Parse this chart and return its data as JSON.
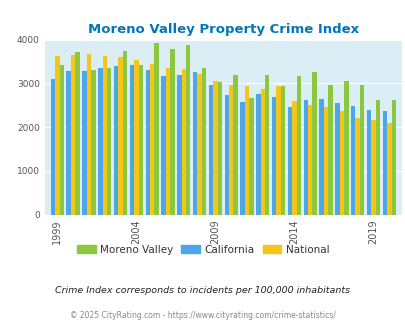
{
  "title": "Moreno Valley Property Crime Index",
  "years": [
    1999,
    2000,
    2001,
    2002,
    2003,
    2004,
    2005,
    2006,
    2007,
    2008,
    2009,
    2010,
    2011,
    2012,
    2013,
    2014,
    2015,
    2016,
    2017,
    2018,
    2019,
    2020
  ],
  "moreno_valley": [
    3430,
    3720,
    3310,
    3360,
    3730,
    3430,
    3920,
    3780,
    3870,
    3350,
    3030,
    3200,
    2660,
    3190,
    2950,
    3160,
    3250,
    2970,
    3060,
    2960,
    2630,
    2620
  ],
  "california": [
    3100,
    3280,
    3290,
    3340,
    3400,
    3420,
    3310,
    3160,
    3180,
    3270,
    2960,
    2730,
    2580,
    2760,
    2680,
    2450,
    2610,
    2640,
    2550,
    2490,
    2380,
    2360
  ],
  "national": [
    3620,
    3640,
    3670,
    3620,
    3600,
    3530,
    3450,
    3350,
    3330,
    3220,
    3050,
    2960,
    2940,
    2870,
    2950,
    2600,
    2510,
    2450,
    2360,
    2200,
    2150,
    2100
  ],
  "bar_color_mv": "#8dc63f",
  "bar_color_ca": "#4da6e8",
  "bar_color_na": "#f5c518",
  "bg_color": "#dceef5",
  "title_color": "#0077bb",
  "subtitle": "Crime Index corresponds to incidents per 100,000 inhabitants",
  "footer": "© 2025 CityRating.com - https://www.cityrating.com/crime-statistics/",
  "ylim": [
    0,
    4000
  ],
  "yticks": [
    0,
    1000,
    2000,
    3000,
    4000
  ],
  "xtick_years": [
    1999,
    2004,
    2009,
    2014,
    2019
  ]
}
